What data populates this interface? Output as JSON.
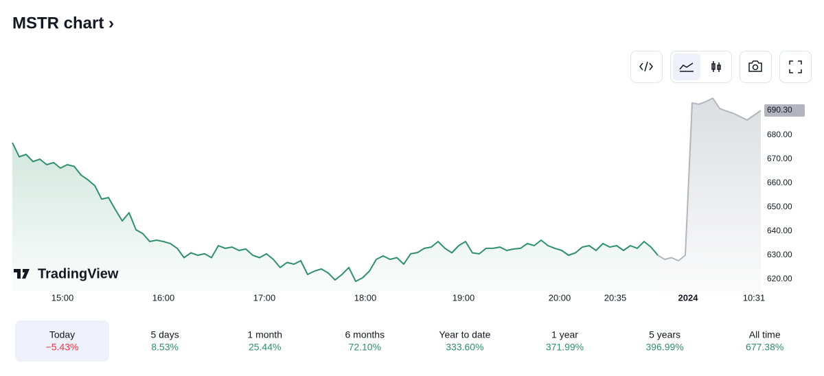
{
  "header": {
    "title": "MSTR chart ›"
  },
  "logo_text": "TradingView",
  "chart_data": {
    "type": "line",
    "x": [
      0,
      1,
      2,
      3,
      4,
      5,
      6,
      7,
      8,
      9,
      10,
      11,
      12,
      13,
      14,
      15,
      16,
      17,
      18,
      19,
      20,
      21,
      22,
      23,
      24,
      25,
      26,
      27,
      28,
      29,
      30,
      31,
      32,
      33,
      34,
      35,
      36,
      37,
      38,
      39,
      40,
      41,
      42,
      43,
      44,
      45,
      46,
      47,
      48,
      49,
      50,
      51,
      52,
      53,
      54,
      55,
      56,
      57,
      58,
      59,
      60,
      61,
      62,
      63,
      64,
      65,
      66,
      67,
      68,
      69,
      70,
      71,
      72,
      73,
      74,
      75,
      76,
      77,
      78,
      79,
      80,
      81,
      82,
      83,
      84,
      85,
      86,
      87,
      88,
      89,
      90,
      91,
      92,
      93,
      94,
      95,
      96,
      97,
      98,
      99,
      100,
      101,
      102,
      103,
      104,
      105,
      106,
      107,
      108,
      109
    ],
    "series": [
      {
        "color": "#2f8f6a",
        "values": [
          676.9,
          671,
          672,
          669,
          670,
          667.7,
          668.6,
          666.3,
          667.7,
          667,
          663.4,
          661.4,
          659,
          653.4,
          654,
          649,
          644.3,
          647.7,
          640.6,
          639,
          635.7,
          636.3,
          635.7,
          634.9,
          632.9,
          629,
          631,
          630,
          630.6,
          629,
          634,
          632.9,
          633.4,
          632,
          632.6,
          630,
          629,
          630.6,
          628.3,
          624.9,
          627,
          626.3,
          627.7,
          622,
          623.4,
          624.3,
          622.6,
          619.7,
          622,
          624.9,
          619.1,
          620.6,
          623.4,
          628.3,
          629.7,
          628.3,
          629,
          626.3,
          630.6,
          631.1,
          632.9,
          633.4,
          635.7,
          632.9,
          631,
          634,
          635.7,
          631,
          630.6,
          632.9,
          632.9,
          633.4,
          632,
          632.6,
          632.9,
          634.9,
          634,
          636.3,
          634,
          632.9,
          632,
          630,
          631,
          633.4,
          634,
          632,
          634.9,
          633.4,
          634,
          632,
          634,
          632.9,
          635.7,
          633.4,
          630,
          null,
          null,
          null,
          null,
          null,
          null,
          null,
          null,
          null,
          null,
          null,
          null,
          null,
          null,
          null
        ]
      },
      {
        "color": "#b2b5be",
        "values": [
          null,
          null,
          null,
          null,
          null,
          null,
          null,
          null,
          null,
          null,
          null,
          null,
          null,
          null,
          null,
          null,
          null,
          null,
          null,
          null,
          null,
          null,
          null,
          null,
          null,
          null,
          null,
          null,
          null,
          null,
          null,
          null,
          null,
          null,
          null,
          null,
          null,
          null,
          null,
          null,
          null,
          null,
          null,
          null,
          null,
          null,
          null,
          null,
          null,
          null,
          null,
          null,
          null,
          null,
          null,
          null,
          null,
          null,
          null,
          null,
          null,
          null,
          null,
          null,
          null,
          null,
          null,
          null,
          null,
          null,
          null,
          null,
          null,
          null,
          null,
          null,
          null,
          null,
          null,
          null,
          null,
          null,
          null,
          null,
          null,
          null,
          null,
          null,
          null,
          null,
          null,
          null,
          null,
          null,
          630,
          628.3,
          629,
          627.7,
          630,
          693.4,
          692.9,
          694,
          695.4,
          691.1,
          690,
          689.1,
          687.7,
          686.3,
          688.3,
          690.3
        ]
      }
    ],
    "xlim": [
      0,
      109.4
    ],
    "xticks": [
      {
        "value": 7.3,
        "label": "15:00"
      },
      {
        "value": 22,
        "label": "16:00"
      },
      {
        "value": 36.7,
        "label": "17:00"
      },
      {
        "value": 51.4,
        "label": "18:00"
      },
      {
        "value": 65.7,
        "label": "19:00"
      },
      {
        "value": 79.7,
        "label": "20:00"
      },
      {
        "value": 87.8,
        "label": "20:35"
      },
      {
        "value": 98.4,
        "label": "2024"
      },
      {
        "value": 108,
        "label": "10:31"
      }
    ],
    "ylim": [
      615,
      696
    ],
    "yticks": [
      {
        "value": 620,
        "label": "620.00"
      },
      {
        "value": 630,
        "label": "630.00"
      },
      {
        "value": 640,
        "label": "640.00"
      },
      {
        "value": 650,
        "label": "650.00"
      },
      {
        "value": 660,
        "label": "660.00"
      },
      {
        "value": 670,
        "label": "670.00"
      },
      {
        "value": 680,
        "label": "680.00"
      }
    ],
    "last_price": {
      "value": 690.3,
      "label": "690.30"
    }
  },
  "periods": [
    {
      "label": "Today",
      "change": "−5.43%"
    },
    {
      "label": "5 days",
      "change": "8.53%"
    },
    {
      "label": "1 month",
      "change": "25.44%"
    },
    {
      "label": "6 months",
      "change": "72.10%"
    },
    {
      "label": "Year to date",
      "change": "333.60%"
    },
    {
      "label": "1 year",
      "change": "371.99%"
    },
    {
      "label": "5 years",
      "change": "396.99%"
    },
    {
      "label": "All time",
      "change": "677.38%"
    }
  ]
}
